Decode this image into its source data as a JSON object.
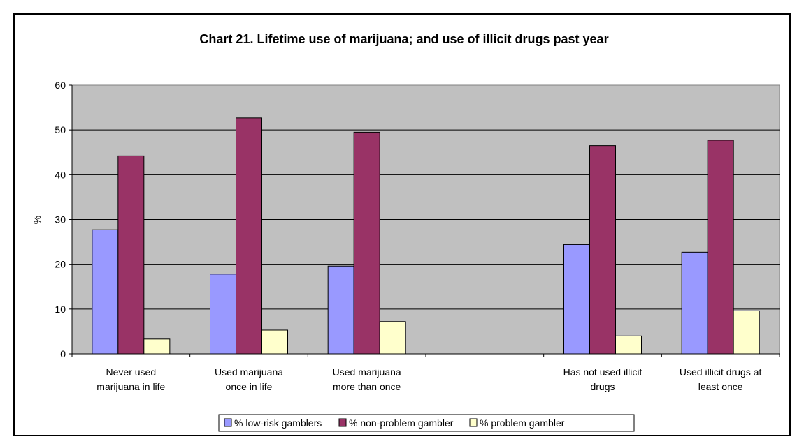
{
  "chart_data": {
    "type": "bar",
    "title": "Chart 21. Lifetime use of marijuana; and use of illicit drugs past year",
    "xlabel": "",
    "ylabel": "%",
    "ylim": [
      0,
      60
    ],
    "yticks": [
      0,
      10,
      20,
      30,
      40,
      50,
      60
    ],
    "grid": true,
    "legend_position": "bottom",
    "plot_background": "#c0c0c0",
    "categories": [
      [
        "Never used",
        "marijuana in life"
      ],
      [
        "Used marijuana",
        "once in life"
      ],
      [
        "Used marijuana",
        "more than once"
      ],
      [
        ""
      ],
      [
        "Has not used illicit",
        "drugs"
      ],
      [
        "Used illicit drugs at",
        "least once"
      ]
    ],
    "series": [
      {
        "name": "% low-risk gamblers",
        "color": "#9999ff",
        "values": [
          27.7,
          17.8,
          19.6,
          null,
          24.4,
          22.7
        ]
      },
      {
        "name": "% non-problem gambler",
        "color": "#993366",
        "values": [
          44.2,
          52.7,
          49.5,
          null,
          46.5,
          47.7
        ]
      },
      {
        "name": "% problem gambler",
        "color": "#ffffcc",
        "values": [
          3.3,
          5.3,
          7.2,
          null,
          4.0,
          9.6
        ]
      }
    ]
  }
}
